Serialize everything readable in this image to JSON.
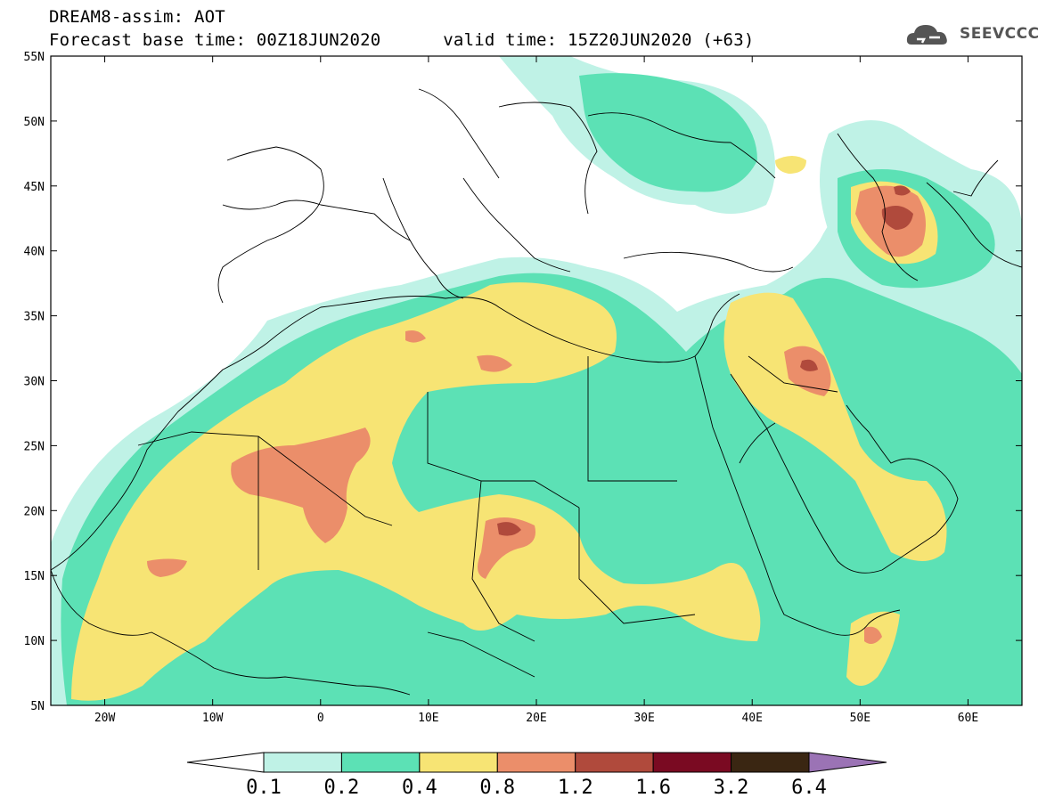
{
  "header": {
    "line1": "DREAM8-assim: AOT",
    "line2_base": "Forecast base time: 00Z18JUN2020",
    "line2_valid": "valid time: 15Z20JUN2020 (+63)"
  },
  "logo": {
    "text": "SEEVCCC",
    "icon": "cloud-icon"
  },
  "map": {
    "lat_ticks": [
      "55N",
      "50N",
      "45N",
      "40N",
      "35N",
      "30N",
      "25N",
      "20N",
      "15N",
      "10N",
      "5N"
    ],
    "lon_ticks": [
      "20W",
      "10W",
      "0",
      "10E",
      "20E",
      "30E",
      "40E",
      "50E",
      "60E"
    ],
    "extent": {
      "lon_min": -25,
      "lon_max": 65,
      "lat_min": 5,
      "lat_max": 55
    }
  },
  "colorbar": {
    "boundaries": [
      "0.1",
      "0.2",
      "0.4",
      "0.8",
      "1.2",
      "1.6",
      "3.2",
      "6.4"
    ],
    "colors": [
      "#ffffff",
      "#bff2e6",
      "#5ce1b5",
      "#f7e474",
      "#eb8e6a",
      "#b04a3c",
      "#7a0a22",
      "#3a2612",
      "#9b73b5"
    ]
  }
}
